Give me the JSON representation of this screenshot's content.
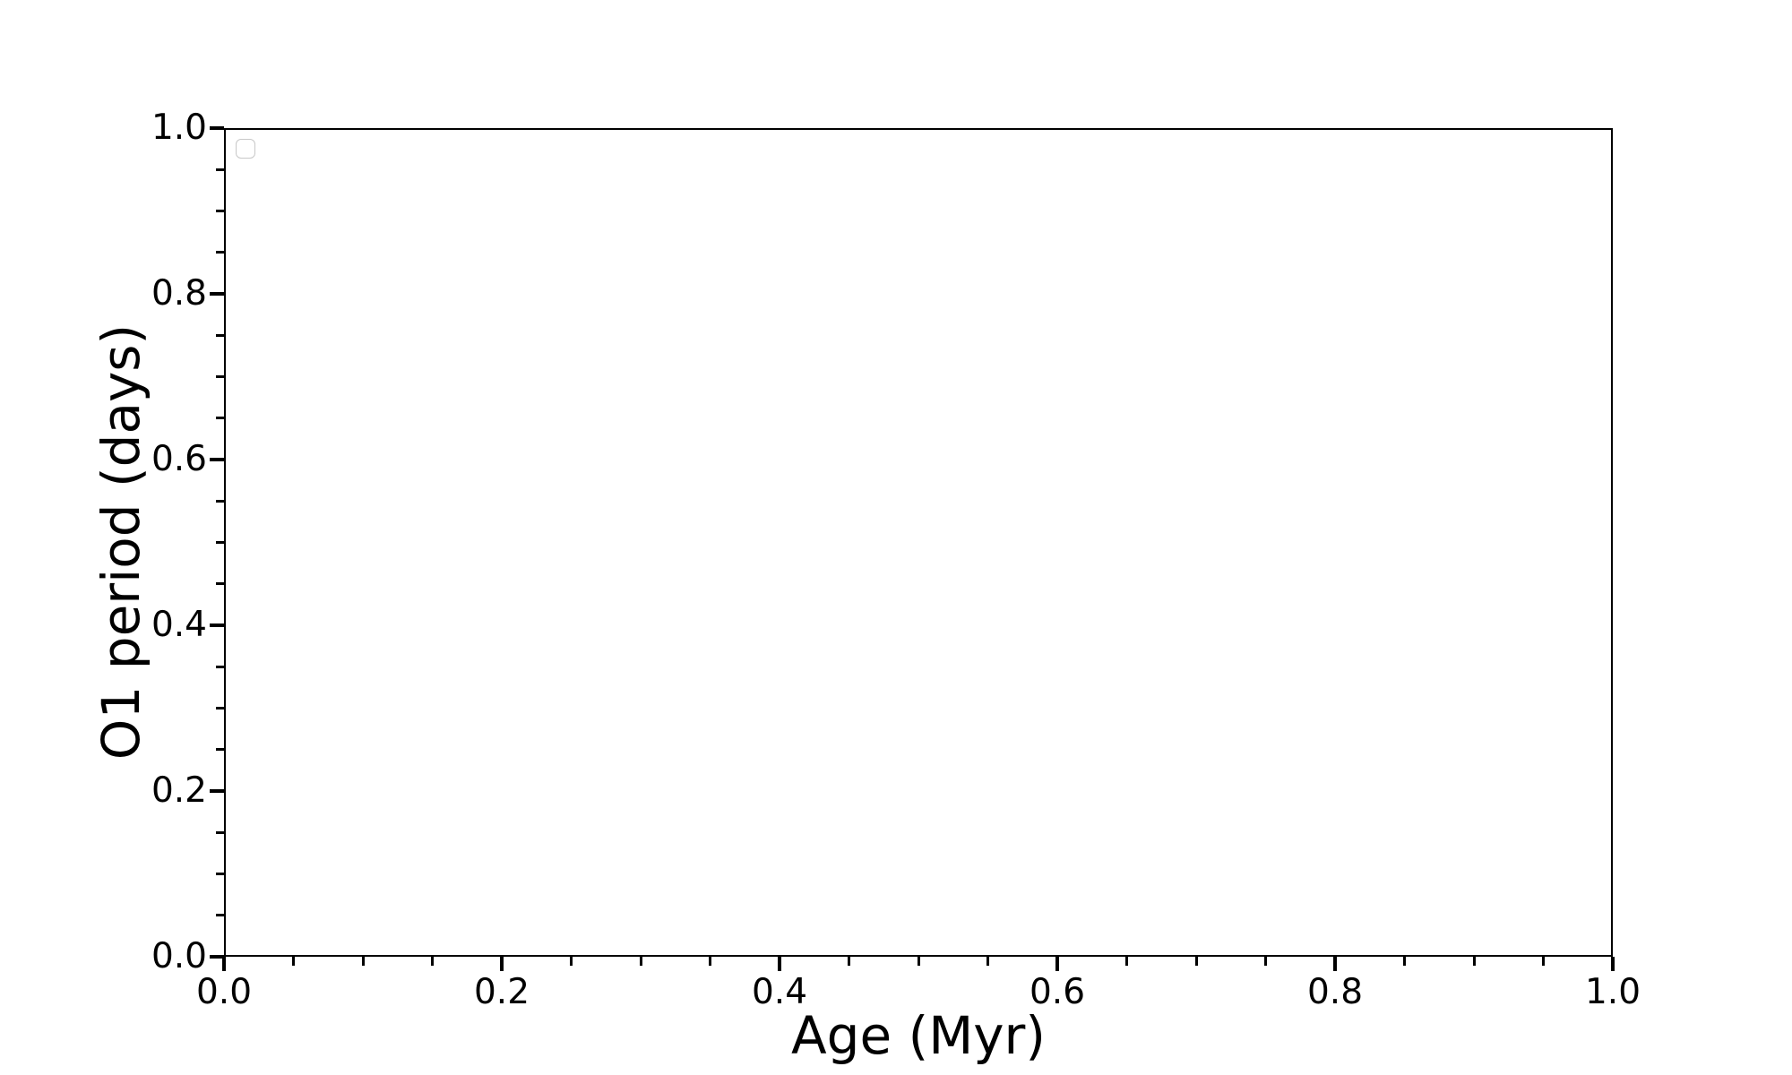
{
  "figure": {
    "background_color": "#ffffff",
    "axes_color": "#000000",
    "text_color": "#000000",
    "legend_border_color": "#c8c8c8"
  },
  "chart_data": {
    "type": "scatter",
    "title": "",
    "xlabel": "Age (Myr)",
    "ylabel": "O1 period (days)",
    "xlim": [
      0.0,
      1.0
    ],
    "ylim": [
      0.0,
      1.0
    ],
    "grid": false,
    "x_major_ticks": {
      "values": [
        0.0,
        0.2,
        0.4,
        0.6,
        0.8,
        1.0
      ],
      "labels": [
        "0.0",
        "0.2",
        "0.4",
        "0.6",
        "0.8",
        "1.0"
      ]
    },
    "y_major_ticks": {
      "values": [
        0.0,
        0.2,
        0.4,
        0.6,
        0.8,
        1.0
      ],
      "labels": [
        "0.0",
        "0.2",
        "0.4",
        "0.6",
        "0.8",
        "1.0"
      ]
    },
    "x_minor_ticks": [
      0.05,
      0.1,
      0.15,
      0.25,
      0.3,
      0.35,
      0.45,
      0.5,
      0.55,
      0.65,
      0.7,
      0.75,
      0.85,
      0.9,
      0.95
    ],
    "y_minor_ticks": [
      0.05,
      0.1,
      0.15,
      0.25,
      0.3,
      0.35,
      0.45,
      0.5,
      0.55,
      0.65,
      0.7,
      0.75,
      0.85,
      0.9,
      0.95
    ],
    "legend": {
      "visible": true,
      "location": "upper left",
      "entries": []
    },
    "series": []
  }
}
